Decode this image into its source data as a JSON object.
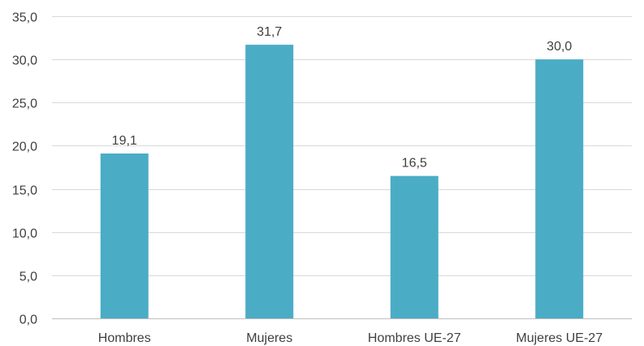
{
  "chart_data": {
    "type": "bar",
    "categories": [
      "Hombres",
      "Mujeres",
      "Hombres UE-27",
      "Mujeres UE-27"
    ],
    "values": [
      19.1,
      31.7,
      16.5,
      30.0
    ],
    "value_labels": [
      "19,1",
      "31,7",
      "16,5",
      "30,0"
    ],
    "title": "",
    "xlabel": "",
    "ylabel": "",
    "ylim": [
      0,
      35
    ],
    "y_ticks": [
      0,
      5,
      10,
      15,
      20,
      25,
      30,
      35
    ],
    "y_tick_labels": [
      "0,0",
      "5,0",
      "10,0",
      "15,0",
      "20,0",
      "25,0",
      "30,0",
      "35,0"
    ],
    "grid": true,
    "legend": "none",
    "bar_color": "#4BACC6"
  }
}
